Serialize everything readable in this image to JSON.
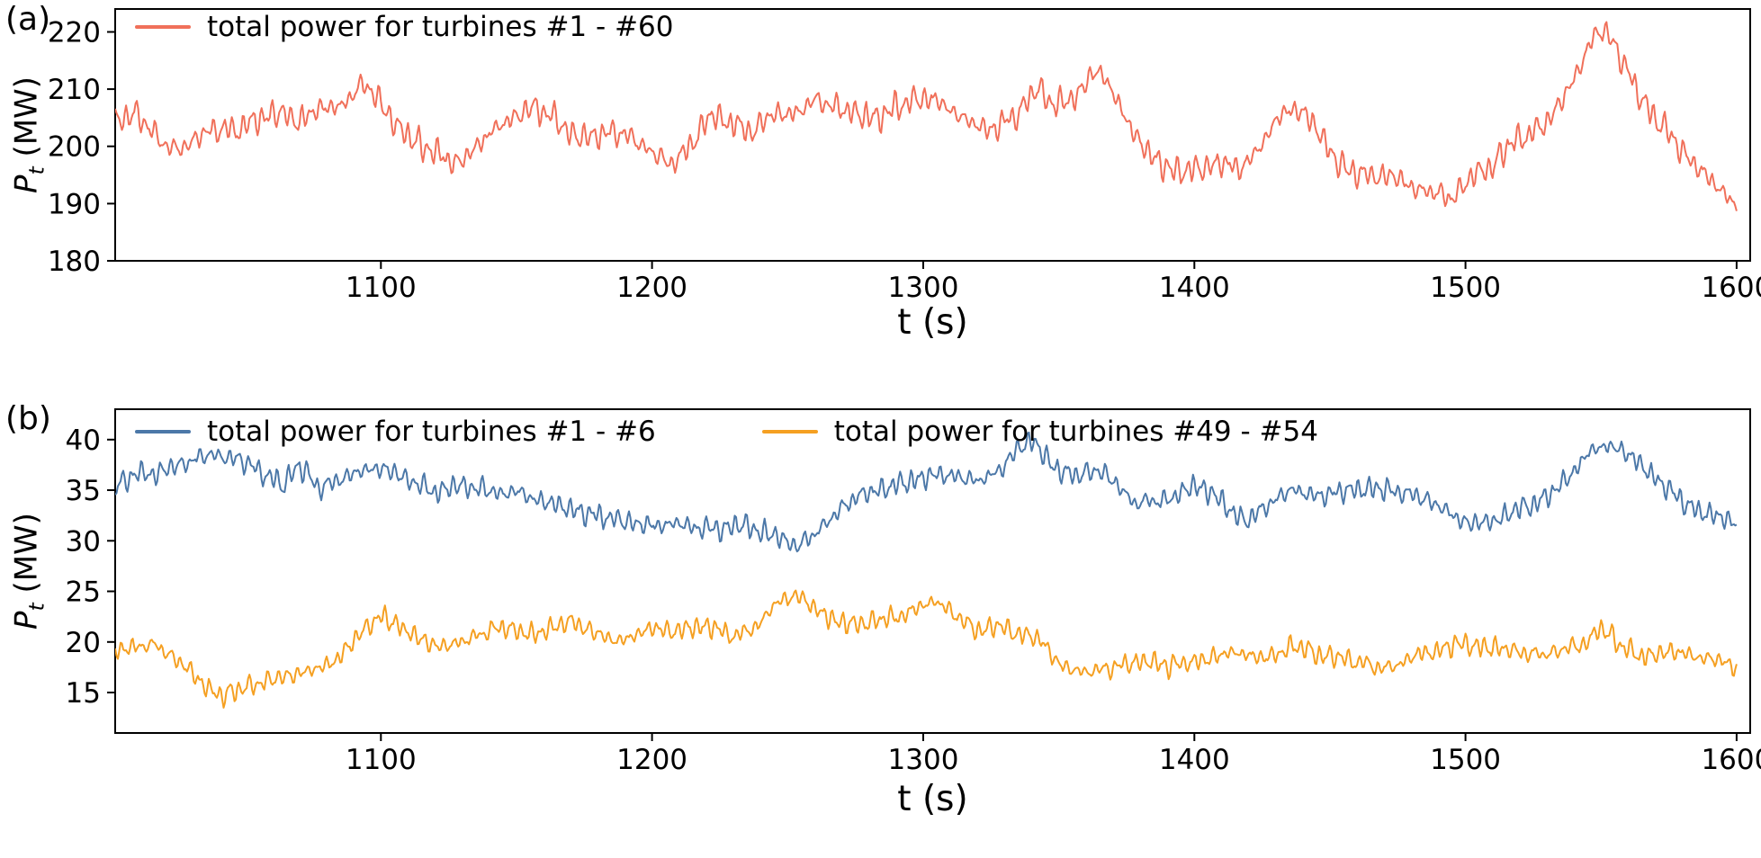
{
  "chart_data": [
    {
      "panel_label": "(a)",
      "type": "line",
      "title": "",
      "xlabel": "t (s)",
      "ylabel_plain": "Pt (MW)",
      "ylabel_var": "P",
      "ylabel_sub": "t",
      "ylabel_rest": " (MW)",
      "xlim": [
        1002,
        1605
      ],
      "ylim": [
        180,
        224
      ],
      "xticks": [
        1100,
        1200,
        1300,
        1400,
        1500,
        1600
      ],
      "yticks": [
        180,
        190,
        200,
        210,
        220
      ],
      "legend_position": "upper-left-inside",
      "grid": false,
      "series": [
        {
          "name": "total power for turbines #1 - #60",
          "color": "#f0705a",
          "noise_amp": 2.7,
          "noise_seed": 7,
          "trend_anchors": [
            [
              1002,
              204.5
            ],
            [
              1010,
              206
            ],
            [
              1018,
              201
            ],
            [
              1025,
              199.5
            ],
            [
              1033,
              201.5
            ],
            [
              1040,
              202.5
            ],
            [
              1048,
              203
            ],
            [
              1055,
              204.5
            ],
            [
              1063,
              205.5
            ],
            [
              1070,
              205
            ],
            [
              1078,
              206.5
            ],
            [
              1086,
              207
            ],
            [
              1093,
              210.5
            ],
            [
              1098,
              209
            ],
            [
              1105,
              203.5
            ],
            [
              1112,
              201
            ],
            [
              1120,
              198.5
            ],
            [
              1128,
              197
            ],
            [
              1135,
              200
            ],
            [
              1143,
              203.5
            ],
            [
              1150,
              205.5
            ],
            [
              1157,
              207
            ],
            [
              1163,
              205
            ],
            [
              1170,
              202
            ],
            [
              1178,
              201.5
            ],
            [
              1185,
              202.5
            ],
            [
              1192,
              202
            ],
            [
              1200,
              198.5
            ],
            [
              1207,
              196.5
            ],
            [
              1215,
              201
            ],
            [
              1222,
              205.5
            ],
            [
              1230,
              204
            ],
            [
              1237,
              203
            ],
            [
              1245,
              205
            ],
            [
              1252,
              206
            ],
            [
              1260,
              207.5
            ],
            [
              1268,
              206.5
            ],
            [
              1275,
              205.5
            ],
            [
              1283,
              205
            ],
            [
              1290,
              207
            ],
            [
              1298,
              208.5
            ],
            [
              1305,
              208
            ],
            [
              1312,
              205.5
            ],
            [
              1320,
              203.5
            ],
            [
              1328,
              203
            ],
            [
              1335,
              206
            ],
            [
              1342,
              210
            ],
            [
              1348,
              207.5
            ],
            [
              1355,
              208
            ],
            [
              1362,
              212.5
            ],
            [
              1367,
              212.5
            ],
            [
              1373,
              207
            ],
            [
              1380,
              200
            ],
            [
              1388,
              196.5
            ],
            [
              1395,
              195.5
            ],
            [
              1403,
              196.5
            ],
            [
              1410,
              197
            ],
            [
              1418,
              196.5
            ],
            [
              1425,
              200
            ],
            [
              1432,
              205.5
            ],
            [
              1438,
              206.5
            ],
            [
              1445,
              203
            ],
            [
              1452,
              198
            ],
            [
              1458,
              195.5
            ],
            [
              1465,
              194.5
            ],
            [
              1472,
              195
            ],
            [
              1480,
              193
            ],
            [
              1488,
              192
            ],
            [
              1495,
              190.5
            ],
            [
              1502,
              194.5
            ],
            [
              1510,
              196.5
            ],
            [
              1517,
              201
            ],
            [
              1525,
              202.5
            ],
            [
              1532,
              205.5
            ],
            [
              1540,
              211.5
            ],
            [
              1547,
              219
            ],
            [
              1551,
              220
            ],
            [
              1556,
              216.5
            ],
            [
              1563,
              210.5
            ],
            [
              1570,
              205
            ],
            [
              1578,
              200.5
            ],
            [
              1585,
              197
            ],
            [
              1592,
              193.5
            ],
            [
              1600,
              189.5
            ]
          ]
        }
      ]
    },
    {
      "panel_label": "(b)",
      "type": "line",
      "title": "",
      "xlabel": "t (s)",
      "ylabel_plain": "Pt (MW)",
      "ylabel_var": "P",
      "ylabel_sub": "t",
      "ylabel_rest": " (MW)",
      "xlim": [
        1002,
        1605
      ],
      "ylim": [
        11,
        43
      ],
      "xticks": [
        1100,
        1200,
        1300,
        1400,
        1500,
        1600
      ],
      "yticks": [
        15,
        20,
        25,
        30,
        35,
        40
      ],
      "legend_position": "upper-center-inside",
      "grid": false,
      "series": [
        {
          "name": "total power for turbines #1 - #6",
          "color": "#4c78a8",
          "noise_amp": 1.25,
          "noise_seed": 21,
          "trend_anchors": [
            [
              1002,
              35.2
            ],
            [
              1010,
              36.8
            ],
            [
              1017,
              36.5
            ],
            [
              1025,
              37.5
            ],
            [
              1032,
              38.2
            ],
            [
              1038,
              38.6
            ],
            [
              1045,
              38.2
            ],
            [
              1052,
              37.6
            ],
            [
              1058,
              36.2
            ],
            [
              1064,
              35.6
            ],
            [
              1070,
              37.6
            ],
            [
              1077,
              35.2
            ],
            [
              1084,
              35.8
            ],
            [
              1091,
              36.6
            ],
            [
              1098,
              37.1
            ],
            [
              1106,
              36.6
            ],
            [
              1113,
              35.6
            ],
            [
              1120,
              35.1
            ],
            [
              1128,
              35.5
            ],
            [
              1135,
              35.1
            ],
            [
              1142,
              34.7
            ],
            [
              1150,
              35.0
            ],
            [
              1158,
              34.1
            ],
            [
              1165,
              33.6
            ],
            [
              1172,
              33.1
            ],
            [
              1180,
              32.5
            ],
            [
              1188,
              32.0
            ],
            [
              1195,
              31.6
            ],
            [
              1203,
              31.5
            ],
            [
              1210,
              31.6
            ],
            [
              1218,
              31.4
            ],
            [
              1225,
              31.1
            ],
            [
              1232,
              31.5
            ],
            [
              1240,
              31.0
            ],
            [
              1248,
              30.2
            ],
            [
              1254,
              29.6
            ],
            [
              1261,
              30.9
            ],
            [
              1268,
              32.8
            ],
            [
              1276,
              34.4
            ],
            [
              1283,
              35.0
            ],
            [
              1290,
              35.5
            ],
            [
              1298,
              35.9
            ],
            [
              1305,
              36.4
            ],
            [
              1312,
              36.5
            ],
            [
              1320,
              36.1
            ],
            [
              1328,
              36.9
            ],
            [
              1336,
              39.2
            ],
            [
              1341,
              40.0
            ],
            [
              1347,
              37.6
            ],
            [
              1352,
              36.6
            ],
            [
              1358,
              36.5
            ],
            [
              1365,
              36.9
            ],
            [
              1372,
              35.6
            ],
            [
              1378,
              33.6
            ],
            [
              1385,
              33.9
            ],
            [
              1392,
              34.1
            ],
            [
              1400,
              35.4
            ],
            [
              1407,
              34.6
            ],
            [
              1414,
              32.6
            ],
            [
              1420,
              32.1
            ],
            [
              1427,
              33.4
            ],
            [
              1434,
              35.0
            ],
            [
              1441,
              34.6
            ],
            [
              1448,
              34.5
            ],
            [
              1456,
              35.0
            ],
            [
              1463,
              34.9
            ],
            [
              1470,
              35.1
            ],
            [
              1478,
              34.6
            ],
            [
              1485,
              34.1
            ],
            [
              1492,
              33.1
            ],
            [
              1500,
              31.6
            ],
            [
              1507,
              31.9
            ],
            [
              1515,
              32.4
            ],
            [
              1522,
              33.4
            ],
            [
              1530,
              34.1
            ],
            [
              1538,
              36.4
            ],
            [
              1546,
              38.9
            ],
            [
              1553,
              39.5
            ],
            [
              1560,
              38.7
            ],
            [
              1568,
              36.6
            ],
            [
              1575,
              34.9
            ],
            [
              1582,
              33.4
            ],
            [
              1590,
              32.6
            ],
            [
              1600,
              31.6
            ]
          ]
        },
        {
          "name": "total power for turbines #49 - #54",
          "color": "#f5a022",
          "noise_amp": 1.15,
          "noise_seed": 42,
          "trend_anchors": [
            [
              1002,
              19.1
            ],
            [
              1010,
              19.6
            ],
            [
              1016,
              20.0
            ],
            [
              1023,
              18.6
            ],
            [
              1030,
              17.1
            ],
            [
              1037,
              15.1
            ],
            [
              1042,
              14.6
            ],
            [
              1049,
              15.4
            ],
            [
              1056,
              16.0
            ],
            [
              1063,
              16.5
            ],
            [
              1070,
              17.0
            ],
            [
              1078,
              17.5
            ],
            [
              1086,
              18.9
            ],
            [
              1093,
              20.9
            ],
            [
              1099,
              22.4
            ],
            [
              1106,
              21.6
            ],
            [
              1113,
              20.6
            ],
            [
              1120,
              19.6
            ],
            [
              1128,
              20.0
            ],
            [
              1135,
              20.5
            ],
            [
              1142,
              21.5
            ],
            [
              1149,
              21.0
            ],
            [
              1156,
              20.5
            ],
            [
              1164,
              21.4
            ],
            [
              1171,
              22.0
            ],
            [
              1178,
              21.1
            ],
            [
              1186,
              20.1
            ],
            [
              1193,
              20.6
            ],
            [
              1200,
              21.4
            ],
            [
              1208,
              21.0
            ],
            [
              1215,
              21.5
            ],
            [
              1222,
              21.5
            ],
            [
              1230,
              20.6
            ],
            [
              1238,
              21.4
            ],
            [
              1246,
              23.9
            ],
            [
              1253,
              24.5
            ],
            [
              1260,
              23.1
            ],
            [
              1268,
              22.1
            ],
            [
              1275,
              21.6
            ],
            [
              1282,
              22.0
            ],
            [
              1290,
              22.5
            ],
            [
              1298,
              23.4
            ],
            [
              1304,
              24.0
            ],
            [
              1312,
              22.5
            ],
            [
              1320,
              21.1
            ],
            [
              1328,
              21.5
            ],
            [
              1335,
              21.0
            ],
            [
              1342,
              20.5
            ],
            [
              1349,
              18.1
            ],
            [
              1355,
              17.1
            ],
            [
              1362,
              17.0
            ],
            [
              1370,
              17.6
            ],
            [
              1378,
              18.0
            ],
            [
              1385,
              18.1
            ],
            [
              1392,
              17.6
            ],
            [
              1400,
              18.0
            ],
            [
              1407,
              18.5
            ],
            [
              1414,
              19.0
            ],
            [
              1421,
              18.6
            ],
            [
              1429,
              18.5
            ],
            [
              1437,
              19.5
            ],
            [
              1444,
              19.0
            ],
            [
              1451,
              18.6
            ],
            [
              1459,
              18.0
            ],
            [
              1466,
              17.6
            ],
            [
              1474,
              17.5
            ],
            [
              1481,
              18.5
            ],
            [
              1489,
              19.0
            ],
            [
              1497,
              19.9
            ],
            [
              1504,
              19.5
            ],
            [
              1512,
              19.5
            ],
            [
              1520,
              19.0
            ],
            [
              1528,
              18.6
            ],
            [
              1535,
              19.0
            ],
            [
              1542,
              19.5
            ],
            [
              1550,
              21.4
            ],
            [
              1557,
              19.6
            ],
            [
              1564,
              18.6
            ],
            [
              1572,
              19.0
            ],
            [
              1580,
              19.0
            ],
            [
              1588,
              18.5
            ],
            [
              1595,
              18.0
            ],
            [
              1600,
              17.6
            ]
          ]
        }
      ]
    }
  ]
}
